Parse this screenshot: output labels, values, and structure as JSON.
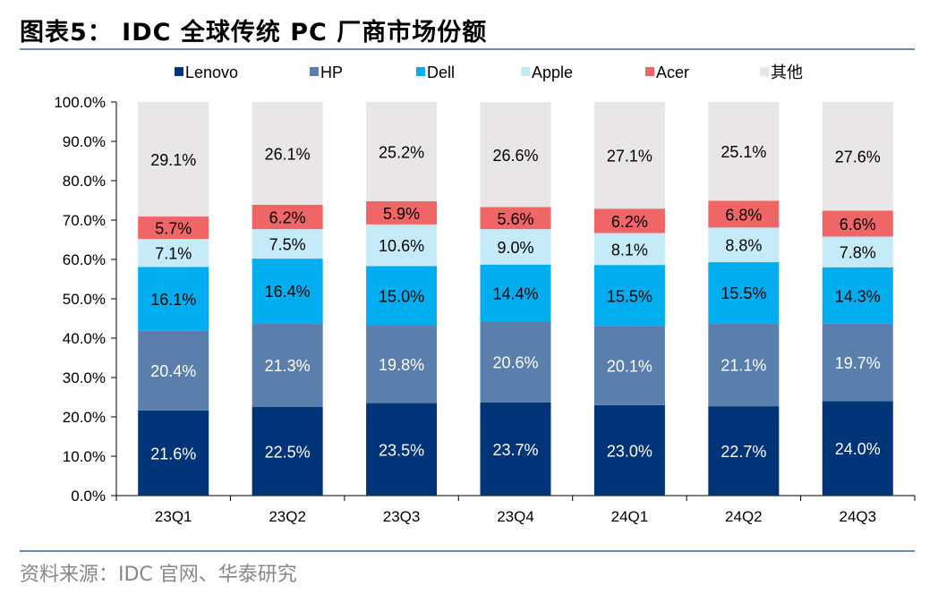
{
  "title": "图表5： IDC 全球传统 PC 厂商市场份额",
  "source": "资料来源：IDC 官网、华泰研究",
  "chart_data": {
    "type": "bar",
    "stacked": true,
    "title": "图表5： IDC 全球传统 PC 厂商市场份额",
    "xlabel": "",
    "ylabel": "",
    "ylim": [
      0,
      100
    ],
    "y_ticks": [
      "0.0%",
      "10.0%",
      "20.0%",
      "30.0%",
      "40.0%",
      "50.0%",
      "60.0%",
      "70.0%",
      "80.0%",
      "90.0%",
      "100.0%"
    ],
    "legend_position": "top",
    "grid": false,
    "categories": [
      "23Q1",
      "23Q2",
      "23Q3",
      "23Q4",
      "24Q1",
      "24Q2",
      "24Q3"
    ],
    "series": [
      {
        "name": "Lenovo",
        "color": "#003478",
        "label_color": "#ffffff",
        "values": [
          21.6,
          22.5,
          23.5,
          23.7,
          23.0,
          22.7,
          24.0
        ],
        "labels": [
          "21.6%",
          "22.5%",
          "23.5%",
          "23.7%",
          "23.0%",
          "22.7%",
          "24.0%"
        ]
      },
      {
        "name": "HP",
        "color": "#5b7fac",
        "label_color": "#ffffff",
        "values": [
          20.4,
          21.3,
          19.8,
          20.6,
          20.1,
          21.1,
          19.7
        ],
        "labels": [
          "20.4%",
          "21.3%",
          "19.8%",
          "20.6%",
          "20.1%",
          "21.1%",
          "19.7%"
        ]
      },
      {
        "name": "Dell",
        "color": "#00aeef",
        "label_color": "#000000",
        "values": [
          16.1,
          16.4,
          15.0,
          14.4,
          15.5,
          15.5,
          14.3
        ],
        "labels": [
          "16.1%",
          "16.4%",
          "15.0%",
          "14.4%",
          "15.5%",
          "15.5%",
          "14.3%"
        ]
      },
      {
        "name": "Apple",
        "color": "#c6ebf8",
        "label_color": "#000000",
        "values": [
          7.1,
          7.5,
          10.6,
          9.0,
          8.1,
          8.8,
          7.8
        ],
        "labels": [
          "7.1%",
          "7.5%",
          "10.6%",
          "9.0%",
          "8.1%",
          "8.8%",
          "7.8%"
        ]
      },
      {
        "name": "Acer",
        "color": "#f06566",
        "label_color": "#000000",
        "values": [
          5.7,
          6.2,
          5.9,
          5.6,
          6.2,
          6.8,
          6.6
        ],
        "labels": [
          "5.7%",
          "6.2%",
          "5.9%",
          "5.6%",
          "6.2%",
          "6.8%",
          "6.6%"
        ]
      },
      {
        "name": "其他",
        "color": "#e8e6e6",
        "label_color": "#000000",
        "values": [
          29.1,
          26.1,
          25.2,
          26.6,
          27.1,
          25.1,
          27.6
        ],
        "labels": [
          "29.1%",
          "26.1%",
          "25.2%",
          "26.6%",
          "27.1%",
          "25.1%",
          "27.6%"
        ]
      }
    ]
  }
}
